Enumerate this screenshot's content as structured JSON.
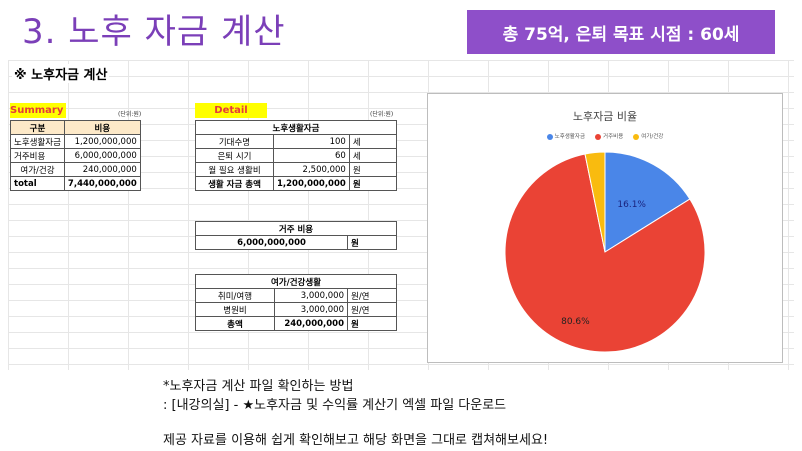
{
  "title": "3. 노후 자금 계산",
  "badge": "총 75억, 은퇴 목표 시점  : 60세",
  "sheet_heading": "※ 노후자금 계산",
  "summary": {
    "label": "Summary",
    "unit": "(단위:원)",
    "col_headers": [
      "구분",
      "비용"
    ],
    "rows": [
      [
        "노후생활자금",
        "1,200,000,000"
      ],
      [
        "거주비용",
        "6,000,000,000"
      ],
      [
        "여가/건강",
        "240,000,000"
      ]
    ],
    "total_label": "total",
    "total_value": "7,440,000,000"
  },
  "detail": {
    "label": "Detail",
    "unit": "(단위:원)",
    "living": {
      "header": "노후생활자금",
      "rows": [
        [
          "기대수명",
          "100",
          "세"
        ],
        [
          "은퇴 시기",
          "60",
          "세"
        ],
        [
          "월 필요 생활비",
          "2,500,000",
          "원"
        ]
      ],
      "total": [
        "생활 자금 총액",
        "1,200,000,000",
        "원"
      ]
    },
    "housing": {
      "header": "거주 비용",
      "value": "6,000,000,000",
      "unit": "원"
    },
    "leisure": {
      "header": "여가/건강생활",
      "rows": [
        [
          "취미/여행",
          "3,000,000",
          "원/연"
        ],
        [
          "병원비",
          "3,000,000",
          "원/연"
        ]
      ],
      "total": [
        "총액",
        "240,000,000",
        "원"
      ]
    }
  },
  "chart_data": {
    "type": "pie",
    "title": "노후자금 비율",
    "categories": [
      "노후생활자금",
      "거주비용",
      "여가/건강"
    ],
    "values": [
      16.1,
      80.6,
      3.2
    ],
    "labels": [
      "16.1%",
      "80.6%",
      ""
    ],
    "colors": [
      "#4a86e8",
      "#ea4335",
      "#f9bb0f"
    ],
    "legend_position": "top"
  },
  "notes": [
    "*노후자금 계산 파일 확인하는 방법",
    ": [내강의실] - ★노후자금 및 수익률 계산기 엑셀 파일 다운로드",
    "제공 자료를 이용해 쉽게 확인해보고 해당 화면을 그대로 캡쳐해보세요!"
  ]
}
